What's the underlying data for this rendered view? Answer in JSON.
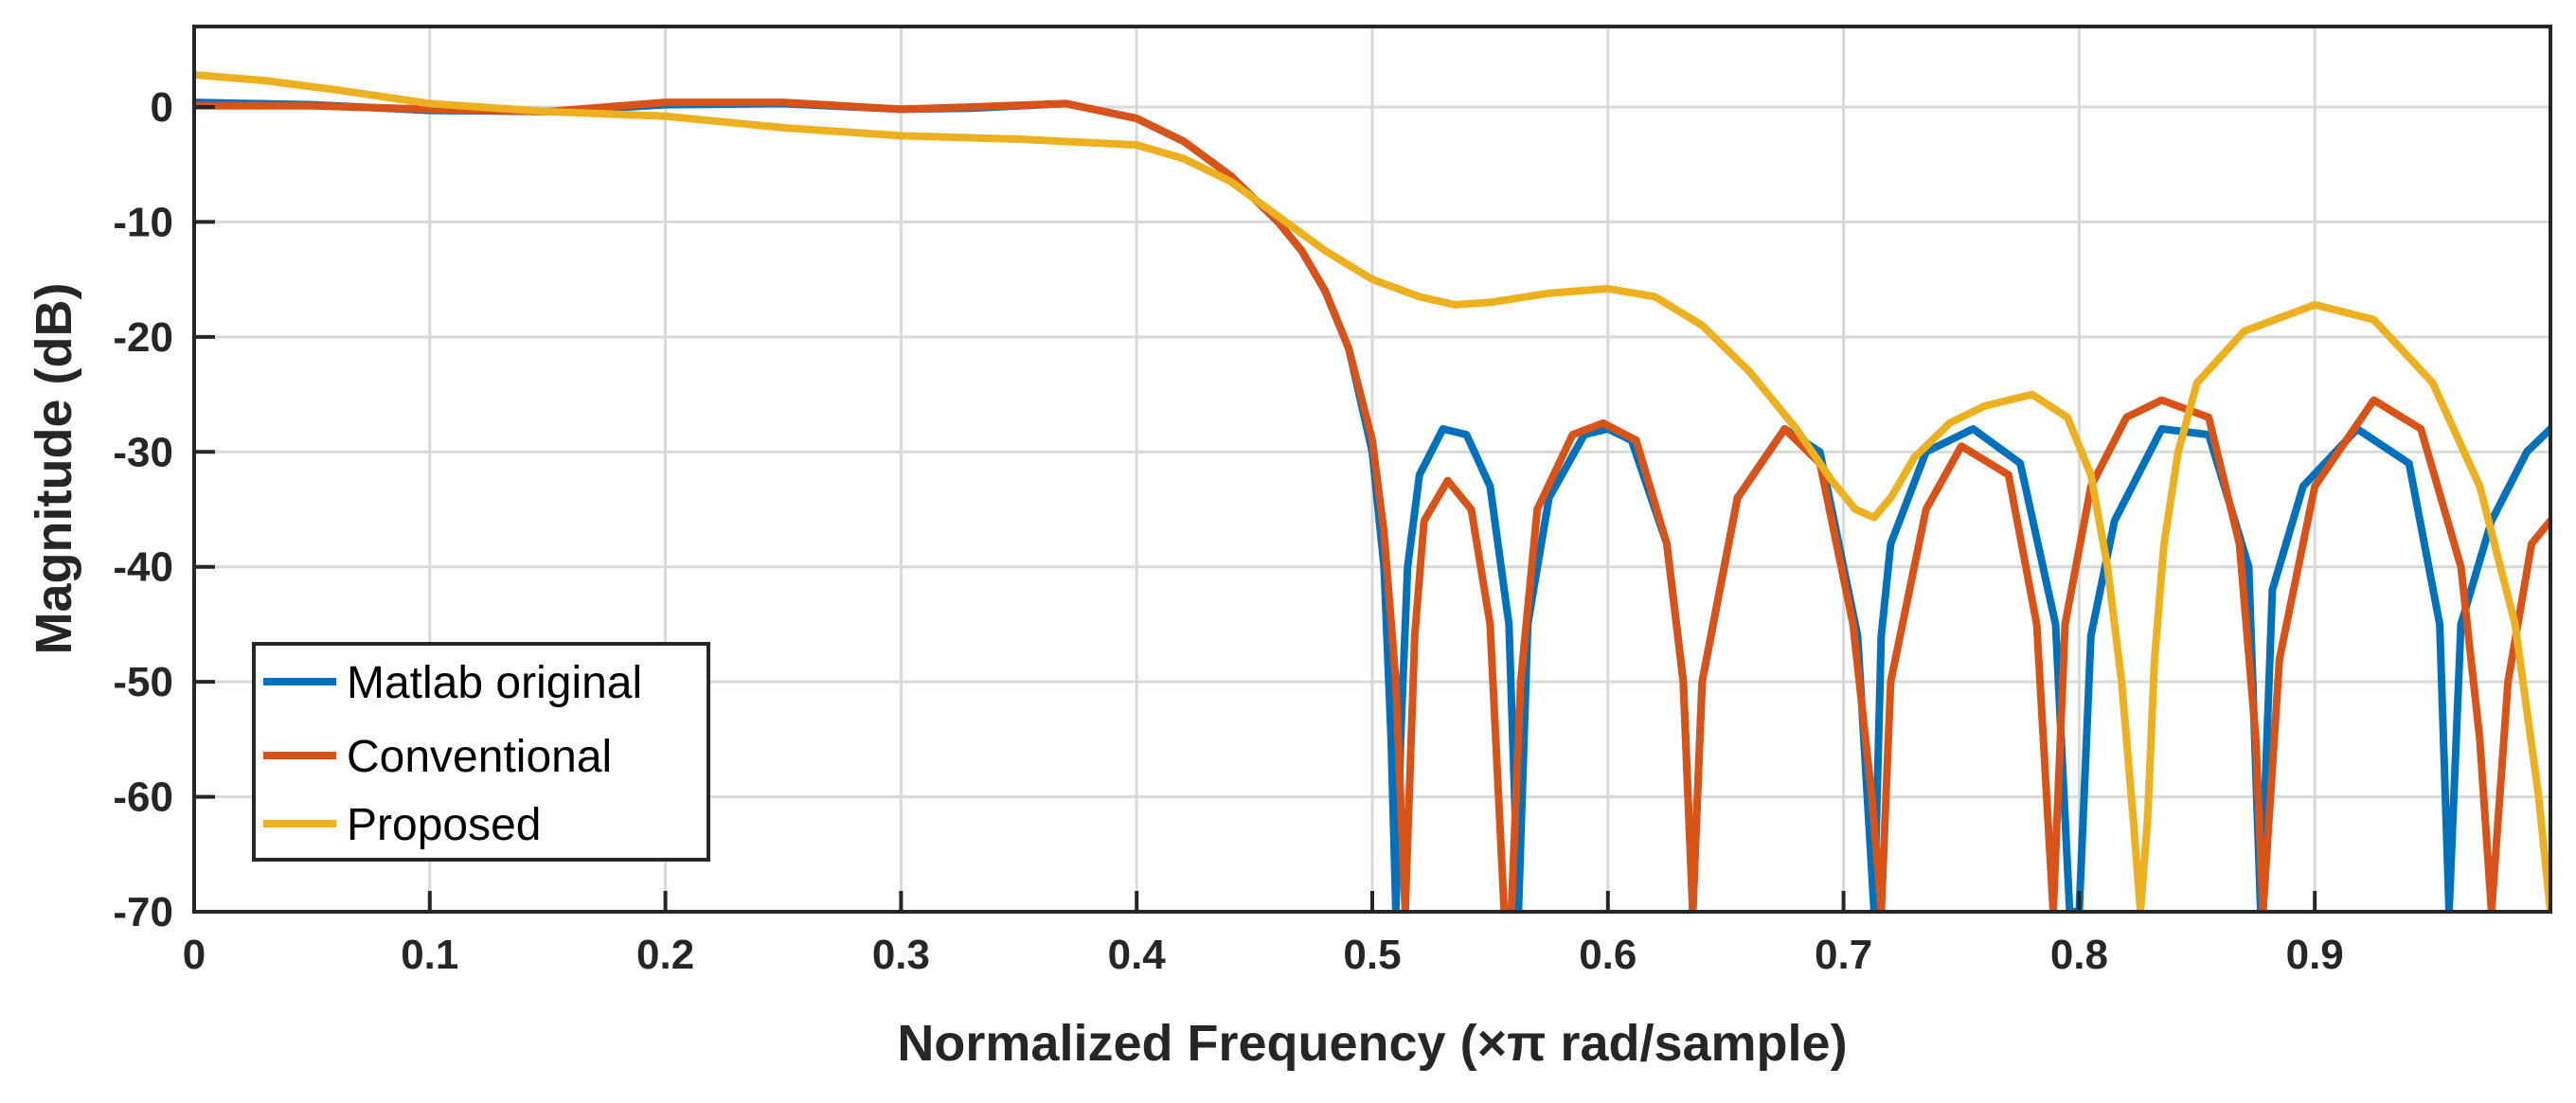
{
  "chart_data": {
    "type": "line",
    "title": "",
    "xlabel": "Normalized Frequency (×π rad/sample)",
    "ylabel": "Magnitude (dB)",
    "xlim": [
      0,
      1
    ],
    "ylim": [
      -70,
      7
    ],
    "xticks": [
      0,
      0.1,
      0.2,
      0.3,
      0.4,
      0.5,
      0.6,
      0.7,
      0.8,
      0.9
    ],
    "xtick_labels": [
      "0",
      "0.1",
      "0.2",
      "0.3",
      "0.4",
      "0.5",
      "0.6",
      "0.7",
      "0.8",
      "0.9"
    ],
    "yticks": [
      0,
      -10,
      -20,
      -30,
      -40,
      -50,
      -60,
      -70
    ],
    "ytick_labels": [
      "0",
      "-10",
      "-20",
      "-30",
      "-40",
      "-50",
      "-60",
      "-70"
    ],
    "grid": true,
    "legend_position": "bottom-left",
    "series": [
      {
        "name": "Matlab original",
        "color": "#0072BD",
        "x": [
          0,
          0.05,
          0.1,
          0.15,
          0.2,
          0.25,
          0.3,
          0.33,
          0.37,
          0.4,
          0.42,
          0.44,
          0.46,
          0.47,
          0.48,
          0.49,
          0.5,
          0.505,
          0.508,
          0.51,
          0.512,
          0.515,
          0.52,
          0.53,
          0.54,
          0.55,
          0.558,
          0.562,
          0.566,
          0.575,
          0.59,
          0.6,
          0.61,
          0.625,
          0.632,
          0.636,
          0.64,
          0.655,
          0.675,
          0.69,
          0.706,
          0.713,
          0.716,
          0.72,
          0.735,
          0.755,
          0.775,
          0.79,
          0.796,
          0.8,
          0.805,
          0.815,
          0.835,
          0.855,
          0.872,
          0.877,
          0.882,
          0.895,
          0.918,
          0.94,
          0.953,
          0.957,
          0.962,
          0.975,
          0.99,
          1.0
        ],
        "y": [
          0.4,
          0.2,
          -0.3,
          -0.4,
          0.2,
          0.3,
          -0.2,
          -0.1,
          0.3,
          -1,
          -3,
          -6,
          -10,
          -12.5,
          -16,
          -21,
          -30,
          -40,
          -55,
          -70,
          -55,
          -40,
          -32,
          -28,
          -28.5,
          -33,
          -45,
          -70,
          -45,
          -34,
          -28.5,
          -28,
          -29,
          -38,
          -50,
          -70,
          -50,
          -34,
          -28,
          -30,
          -46,
          -70,
          -46,
          -38,
          -30,
          -28,
          -31,
          -45,
          -70,
          -70,
          -46,
          -36,
          -28,
          -28.5,
          -40,
          -70,
          -42,
          -33,
          -28,
          -31,
          -45,
          -70,
          -45,
          -36,
          -30,
          -28
        ]
      },
      {
        "name": "Conventional",
        "color": "#D95319",
        "x": [
          0,
          0.05,
          0.1,
          0.15,
          0.2,
          0.25,
          0.3,
          0.33,
          0.37,
          0.4,
          0.42,
          0.44,
          0.46,
          0.47,
          0.48,
          0.49,
          0.5,
          0.505,
          0.51,
          0.514,
          0.518,
          0.522,
          0.532,
          0.542,
          0.55,
          0.556,
          0.559,
          0.563,
          0.57,
          0.585,
          0.598,
          0.612,
          0.625,
          0.632,
          0.636,
          0.64,
          0.655,
          0.675,
          0.69,
          0.704,
          0.712,
          0.716,
          0.72,
          0.735,
          0.75,
          0.77,
          0.782,
          0.789,
          0.794,
          0.805,
          0.82,
          0.835,
          0.855,
          0.868,
          0.875,
          0.878,
          0.885,
          0.9,
          0.925,
          0.945,
          0.962,
          0.97,
          0.975,
          0.982,
          0.992,
          1.0
        ],
        "y": [
          0.1,
          0.1,
          -0.2,
          -0.4,
          0.4,
          0.4,
          -0.2,
          0,
          0.3,
          -1,
          -3,
          -6,
          -10,
          -12.5,
          -16,
          -21,
          -29,
          -37,
          -50,
          -70,
          -46,
          -36,
          -32.5,
          -35,
          -45,
          -70,
          -70,
          -50,
          -35,
          -28.5,
          -27.5,
          -29,
          -38,
          -50,
          -70,
          -50,
          -34,
          -28,
          -31,
          -45,
          -60,
          -70,
          -50,
          -35,
          -29.5,
          -32,
          -45,
          -70,
          -45,
          -33,
          -27,
          -25.5,
          -27,
          -38,
          -55,
          -70,
          -48,
          -33,
          -25.5,
          -28,
          -40,
          -55,
          -70,
          -50,
          -38,
          -36
        ]
      },
      {
        "name": "Proposed",
        "color": "#EDB120",
        "x": [
          0,
          0.03,
          0.06,
          0.1,
          0.15,
          0.2,
          0.25,
          0.3,
          0.35,
          0.4,
          0.42,
          0.44,
          0.46,
          0.48,
          0.5,
          0.52,
          0.535,
          0.55,
          0.575,
          0.6,
          0.62,
          0.64,
          0.66,
          0.68,
          0.695,
          0.705,
          0.713,
          0.72,
          0.73,
          0.745,
          0.76,
          0.78,
          0.795,
          0.805,
          0.812,
          0.818,
          0.823,
          0.826,
          0.829,
          0.832,
          0.836,
          0.842,
          0.85,
          0.87,
          0.9,
          0.925,
          0.95,
          0.97,
          0.985,
          0.995,
          1.0
        ],
        "y": [
          2.8,
          2.3,
          1.5,
          0.3,
          -0.4,
          -0.8,
          -1.8,
          -2.5,
          -2.8,
          -3.3,
          -4.5,
          -6.5,
          -9.5,
          -12.5,
          -15,
          -16.5,
          -17.2,
          -17,
          -16.2,
          -15.8,
          -16.5,
          -19,
          -23,
          -28,
          -32.5,
          -35,
          -35.7,
          -34,
          -30.5,
          -27.5,
          -26,
          -25,
          -27,
          -32,
          -40,
          -50,
          -62,
          -70,
          -62,
          -48,
          -38,
          -30,
          -24,
          -19.5,
          -17.2,
          -18.5,
          -24,
          -33,
          -45,
          -60,
          -70
        ]
      }
    ]
  }
}
